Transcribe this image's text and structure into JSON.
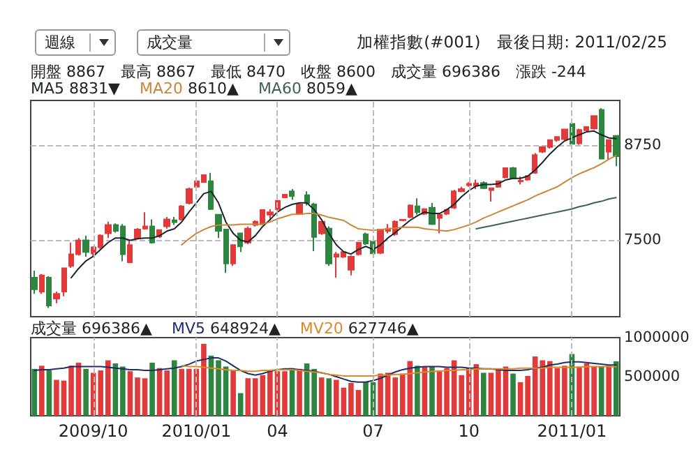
{
  "chart_data": [
    {
      "type": "candlestick",
      "title": "加權指數(#001)　最後日期: 2011/02/25",
      "annotations": [
        "週線",
        "成交量",
        "開盤 8867　最高 8867　最低 8470　收盤 8600　成交量 696386　漲跌 -244"
      ],
      "categories": [
        null,
        null,
        null,
        null,
        null,
        null,
        null,
        null,
        "2009/10",
        null,
        null,
        null,
        null,
        null,
        null,
        null,
        null,
        null,
        null,
        null,
        null,
        null,
        "2010/01",
        null,
        null,
        null,
        null,
        null,
        null,
        null,
        null,
        null,
        null,
        "04",
        null,
        null,
        null,
        null,
        null,
        null,
        null,
        null,
        null,
        null,
        null,
        null,
        "07",
        null,
        null,
        null,
        null,
        null,
        null,
        null,
        null,
        null,
        null,
        null,
        null,
        "10",
        null,
        null,
        null,
        null,
        null,
        null,
        null,
        null,
        null,
        null,
        null,
        null,
        null,
        "2011/01",
        null,
        null,
        null,
        null,
        null,
        null
      ],
      "ohlc": [
        [
          7012,
          7103,
          6798,
          6859
        ],
        [
          6829,
          7060,
          6800,
          7042
        ],
        [
          7012,
          7030,
          6615,
          6646
        ],
        [
          6737,
          6829,
          6676,
          6798
        ],
        [
          6829,
          7134,
          6768,
          7134
        ],
        [
          7164,
          7469,
          7140,
          7317
        ],
        [
          7317,
          7530,
          7300,
          7500
        ],
        [
          7500,
          7561,
          7286,
          7347
        ],
        [
          7329,
          7420,
          7300,
          7408
        ],
        [
          7408,
          7580,
          7390,
          7561
        ],
        [
          7591,
          7744,
          7530,
          7701
        ],
        [
          7701,
          7720,
          7600,
          7622
        ],
        [
          7683,
          7713,
          7225,
          7317
        ],
        [
          7213,
          7500,
          7200,
          7439
        ],
        [
          7530,
          7660,
          7510,
          7640
        ],
        [
          7652,
          7866,
          7640,
          7683
        ],
        [
          7683,
          7774,
          7457,
          7469
        ],
        [
          7549,
          7640,
          7530,
          7634
        ],
        [
          7683,
          7805,
          7652,
          7774
        ],
        [
          7762,
          7805,
          7700,
          7738
        ],
        [
          7774,
          7960,
          7760,
          7945
        ],
        [
          7988,
          8190,
          7970,
          8171
        ],
        [
          8201,
          8280,
          8180,
          8274
        ],
        [
          8262,
          8360,
          8250,
          8354
        ],
        [
          8274,
          8384,
          7896,
          7908
        ],
        [
          7835,
          7840,
          7530,
          7622
        ],
        [
          7640,
          7650,
          7073,
          7195
        ],
        [
          7195,
          7439,
          7164,
          7439
        ],
        [
          7591,
          7600,
          7347,
          7420
        ],
        [
          7469,
          7680,
          7450,
          7652
        ],
        [
          7701,
          7760,
          7680,
          7744
        ],
        [
          7713,
          7896,
          7700,
          7896
        ],
        [
          7835,
          7908,
          7762,
          7866
        ],
        [
          7908,
          8018,
          7890,
          8018
        ],
        [
          8061,
          8100,
          8050,
          8097
        ],
        [
          8140,
          8171,
          8030,
          8079
        ],
        [
          7847,
          7990,
          7840,
          7969
        ],
        [
          8091,
          8140,
          7957,
          7988
        ],
        [
          7969,
          7990,
          7359,
          7542
        ],
        [
          7591,
          7744,
          7570,
          7744
        ],
        [
          7652,
          7680,
          7164,
          7195
        ],
        [
          7286,
          7347,
          7012,
          7317
        ],
        [
          7286,
          7360,
          7270,
          7347
        ],
        [
          7115,
          7300,
          7042,
          7286
        ],
        [
          7317,
          7469,
          7300,
          7469
        ],
        [
          7579,
          7600,
          7440,
          7457
        ],
        [
          7481,
          7500,
          7320,
          7329
        ],
        [
          7335,
          7650,
          7320,
          7640
        ],
        [
          7622,
          7713,
          7591,
          7652
        ],
        [
          7579,
          7760,
          7560,
          7744
        ],
        [
          7762,
          7775,
          7750,
          7770
        ],
        [
          7805,
          7970,
          7790,
          7957
        ],
        [
          7945,
          8049,
          7835,
          7866
        ],
        [
          7847,
          7920,
          7830,
          7908
        ],
        [
          7927,
          7988,
          7701,
          7713
        ],
        [
          7792,
          7840,
          7591,
          7835
        ],
        [
          7847,
          7910,
          7830,
          7896
        ],
        [
          7927,
          8160,
          7910,
          8140
        ],
        [
          8140,
          8200,
          8130,
          8171
        ],
        [
          8220,
          8260,
          8200,
          8240
        ],
        [
          8213,
          8293,
          8171,
          8244
        ],
        [
          8250,
          8270,
          8170,
          8183
        ],
        [
          8158,
          8190,
          8006,
          8183
        ],
        [
          8201,
          8280,
          8190,
          8274
        ],
        [
          8323,
          8450,
          8310,
          8445
        ],
        [
          8445,
          8460,
          8300,
          8311
        ],
        [
          8270,
          8335,
          8231,
          8280
        ],
        [
          8293,
          8341,
          8280,
          8341
        ],
        [
          8384,
          8640,
          8370,
          8616
        ],
        [
          8658,
          8730,
          8640,
          8720
        ],
        [
          8720,
          8811,
          8700,
          8811
        ],
        [
          8811,
          8860,
          8790,
          8854
        ],
        [
          8823,
          8951,
          8810,
          8951
        ],
        [
          9025,
          9040,
          8732,
          8762
        ],
        [
          8768,
          8960,
          8750,
          8945
        ],
        [
          8940,
          8990,
          8920,
          8982
        ],
        [
          8963,
          9128,
          8950,
          9128
        ],
        [
          9207,
          9230,
          8560,
          8567
        ],
        [
          8658,
          8811,
          8555,
          8811
        ],
        [
          8867,
          8867,
          8470,
          8600
        ]
      ],
      "colors": [
        "#2e8540",
        "#e03a3a",
        "#2e8540",
        "#e03a3a",
        "#e03a3a",
        "#e03a3a",
        "#e03a3a",
        "#2e8540",
        "#e03a3a",
        "#e03a3a",
        "#e03a3a",
        "#2e8540",
        "#2e8540",
        "#e03a3a",
        "#e03a3a",
        "#e03a3a",
        "#2e8540",
        "#e03a3a",
        "#e03a3a",
        "#2e8540",
        "#e03a3a",
        "#e03a3a",
        "#e03a3a",
        "#e03a3a",
        "#2e8540",
        "#2e8540",
        "#2e8540",
        "#e03a3a",
        "#2e8540",
        "#e03a3a",
        "#e03a3a",
        "#e03a3a",
        "#e03a3a",
        "#e03a3a",
        "#e03a3a",
        "#2e8540",
        "#e03a3a",
        "#2e8540",
        "#2e8540",
        "#e03a3a",
        "#2e8540",
        "#e03a3a",
        "#e03a3a",
        "#e03a3a",
        "#e03a3a",
        "#2e8540",
        "#2e8540",
        "#e03a3a",
        "#e03a3a",
        "#e03a3a",
        "#e03a3a",
        "#e03a3a",
        "#2e8540",
        "#e03a3a",
        "#2e8540",
        "#e03a3a",
        "#e03a3a",
        "#e03a3a",
        "#e03a3a",
        "#e03a3a",
        "#e03a3a",
        "#2e8540",
        "#e03a3a",
        "#e03a3a",
        "#e03a3a",
        "#2e8540",
        "#e03a3a",
        "#e03a3a",
        "#e03a3a",
        "#e03a3a",
        "#e03a3a",
        "#e03a3a",
        "#e03a3a",
        "#2e8540",
        "#e03a3a",
        "#e03a3a",
        "#e03a3a",
        "#2e8540",
        "#e03a3a",
        "#2e8540"
      ],
      "series": [
        {
          "name": "MA5 8831▼",
          "type": "line",
          "color": "#1c2430",
          "values": [
            null,
            null,
            null,
            null,
            null,
            7010,
            7130,
            7230,
            7290,
            7380,
            7470,
            7530,
            7530,
            7500,
            7520,
            7530,
            7530,
            7560,
            7620,
            7650,
            7740,
            7870,
            7990,
            8110,
            8140,
            7990,
            7740,
            7590,
            7500,
            7480,
            7560,
            7680,
            7770,
            7870,
            7930,
            7970,
            7990,
            7990,
            7900,
            7770,
            7590,
            7440,
            7350,
            7320,
            7380,
            7420,
            7380,
            7440,
            7530,
            7600,
            7680,
            7760,
            7820,
            7870,
            7850,
            7850,
            7900,
            7970,
            8070,
            8150,
            8210,
            8230,
            8230,
            8240,
            8290,
            8310,
            8310,
            8340,
            8420,
            8520,
            8630,
            8720,
            8800,
            8840,
            8880,
            8920,
            8930,
            8880,
            8840,
            8831
          ]
        },
        {
          "name": "MA20 8610▲",
          "type": "line",
          "color": "#c8863a",
          "values": [
            null,
            null,
            null,
            null,
            null,
            null,
            null,
            null,
            null,
            null,
            null,
            null,
            null,
            null,
            null,
            null,
            null,
            null,
            null,
            null,
            7440,
            7520,
            7590,
            7640,
            7680,
            7700,
            7700,
            7700,
            7710,
            7710,
            7710,
            7710,
            7740,
            7780,
            7810,
            7840,
            7840,
            7850,
            7850,
            7830,
            7800,
            7780,
            7760,
            7700,
            7650,
            7640,
            7630,
            7640,
            7650,
            7660,
            7670,
            7670,
            7670,
            7650,
            7640,
            7630,
            7620,
            7640,
            7670,
            7700,
            7740,
            7790,
            7830,
            7870,
            7910,
            7950,
            7990,
            8030,
            8080,
            8120,
            8160,
            8200,
            8260,
            8320,
            8370,
            8410,
            8450,
            8500,
            8560,
            8610
          ]
        },
        {
          "name": "MA60 8059▲",
          "type": "line",
          "color": "#3f6150",
          "values": [
            null,
            null,
            null,
            null,
            null,
            null,
            null,
            null,
            null,
            null,
            null,
            null,
            null,
            null,
            null,
            null,
            null,
            null,
            null,
            null,
            null,
            null,
            null,
            null,
            null,
            null,
            null,
            null,
            null,
            null,
            null,
            null,
            null,
            null,
            null,
            null,
            null,
            null,
            null,
            null,
            null,
            null,
            null,
            null,
            null,
            null,
            null,
            null,
            null,
            null,
            null,
            null,
            null,
            null,
            null,
            null,
            null,
            null,
            null,
            null,
            7650,
            7670,
            7690,
            7710,
            7730,
            7750,
            7770,
            7790,
            7810,
            7830,
            7850,
            7870,
            7890,
            7910,
            7940,
            7960,
            7990,
            8010,
            8040,
            8059
          ]
        }
      ],
      "ylim": [
        6500,
        9330
      ],
      "yticks": [
        7500,
        8750
      ],
      "grid": true,
      "legend": "top left",
      "tick_labels": "y"
    },
    {
      "type": "bar",
      "categories": [
        null,
        null,
        null,
        null,
        null,
        null,
        null,
        null,
        "2009/10",
        null,
        null,
        null,
        null,
        null,
        null,
        null,
        null,
        null,
        null,
        null,
        null,
        null,
        "2010/01",
        null,
        null,
        null,
        null,
        null,
        null,
        null,
        null,
        null,
        null,
        "04",
        null,
        null,
        null,
        null,
        null,
        null,
        null,
        null,
        null,
        null,
        null,
        null,
        "07",
        null,
        null,
        null,
        null,
        null,
        null,
        null,
        null,
        null,
        null,
        null,
        null,
        "10",
        null,
        null,
        null,
        null,
        null,
        null,
        null,
        null,
        null,
        null,
        null,
        null,
        null,
        "2011/01",
        null,
        null,
        null,
        null,
        null,
        null
      ],
      "series": [
        {
          "name": "成交量 696386▲",
          "type": "bar",
          "colors": [
            "#2e8540",
            "#e03a3a",
            "#2e8540",
            "#e03a3a",
            "#e03a3a",
            "#e03a3a",
            "#e03a3a",
            "#2e8540",
            "#e03a3a",
            "#e03a3a",
            "#e03a3a",
            "#2e8540",
            "#2e8540",
            "#e03a3a",
            "#e03a3a",
            "#e03a3a",
            "#2e8540",
            "#e03a3a",
            "#e03a3a",
            "#2e8540",
            "#e03a3a",
            "#e03a3a",
            "#e03a3a",
            "#e03a3a",
            "#2e8540",
            "#2e8540",
            "#2e8540",
            "#e03a3a",
            "#2e8540",
            "#e03a3a",
            "#e03a3a",
            "#e03a3a",
            "#e03a3a",
            "#e03a3a",
            "#e03a3a",
            "#2e8540",
            "#e03a3a",
            "#2e8540",
            "#2e8540",
            "#e03a3a",
            "#2e8540",
            "#e03a3a",
            "#e03a3a",
            "#e03a3a",
            "#e03a3a",
            "#2e8540",
            "#2e8540",
            "#e03a3a",
            "#e03a3a",
            "#e03a3a",
            "#e03a3a",
            "#e03a3a",
            "#2e8540",
            "#e03a3a",
            "#2e8540",
            "#e03a3a",
            "#e03a3a",
            "#e03a3a",
            "#e03a3a",
            "#e03a3a",
            "#e03a3a",
            "#2e8540",
            "#e03a3a",
            "#e03a3a",
            "#e03a3a",
            "#2e8540",
            "#e03a3a",
            "#e03a3a",
            "#e03a3a",
            "#e03a3a",
            "#e03a3a",
            "#e03a3a",
            "#e03a3a",
            "#2e8540",
            "#e03a3a",
            "#e03a3a",
            "#e03a3a",
            "#2e8540",
            "#e03a3a",
            "#2e8540"
          ],
          "values": [
            600000,
            640000,
            580000,
            460000,
            450000,
            640000,
            680000,
            600000,
            550000,
            580000,
            710000,
            670000,
            630000,
            570000,
            490000,
            480000,
            680000,
            610000,
            580000,
            710000,
            600000,
            600000,
            600000,
            920000,
            770000,
            710000,
            630000,
            580000,
            290000,
            480000,
            480000,
            520000,
            570000,
            570000,
            570000,
            610000,
            600000,
            670000,
            600000,
            490000,
            480000,
            460000,
            360000,
            420000,
            330000,
            430000,
            430000,
            540000,
            550000,
            490000,
            540000,
            700000,
            640000,
            630000,
            630000,
            580000,
            610000,
            710000,
            520000,
            610000,
            660000,
            550000,
            550000,
            600000,
            630000,
            540000,
            430000,
            510000,
            760000,
            710000,
            700000,
            610000,
            640000,
            790000,
            630000,
            670000,
            630000,
            630000,
            640000,
            696386
          ]
        },
        {
          "name": "MV5 648924▲",
          "type": "line",
          "color": "#1f2d6b",
          "values": [
            580000,
            590000,
            590000,
            600000,
            610000,
            630000,
            630000,
            630000,
            630000,
            630000,
            620000,
            610000,
            600000,
            590000,
            590000,
            580000,
            580000,
            590000,
            600000,
            610000,
            630000,
            660000,
            700000,
            720000,
            740000,
            740000,
            700000,
            640000,
            580000,
            540000,
            520000,
            540000,
            570000,
            590000,
            600000,
            600000,
            590000,
            580000,
            570000,
            550000,
            530000,
            500000,
            470000,
            440000,
            430000,
            430000,
            450000,
            480000,
            520000,
            560000,
            590000,
            610000,
            620000,
            630000,
            630000,
            630000,
            620000,
            620000,
            620000,
            610000,
            610000,
            600000,
            600000,
            590000,
            580000,
            580000,
            580000,
            590000,
            610000,
            620000,
            650000,
            660000,
            680000,
            690000,
            690000,
            680000,
            670000,
            660000,
            650000,
            648924
          ]
        },
        {
          "name": "MV20 627746▲",
          "type": "line",
          "color": "#d98a2a",
          "values": [
            null,
            null,
            null,
            null,
            null,
            null,
            null,
            null,
            null,
            null,
            null,
            null,
            null,
            null,
            null,
            null,
            null,
            null,
            null,
            null,
            640000,
            630000,
            630000,
            620000,
            610000,
            600000,
            590000,
            580000,
            580000,
            570000,
            570000,
            580000,
            580000,
            590000,
            590000,
            590000,
            580000,
            570000,
            560000,
            550000,
            530000,
            520000,
            510000,
            510000,
            510000,
            510000,
            510000,
            520000,
            520000,
            530000,
            530000,
            540000,
            550000,
            560000,
            570000,
            570000,
            580000,
            580000,
            590000,
            590000,
            600000,
            600000,
            600000,
            600000,
            600000,
            600000,
            610000,
            610000,
            610000,
            610000,
            620000,
            620000,
            620000,
            620000,
            620000,
            630000,
            630000,
            630000,
            630000,
            627746
          ]
        }
      ],
      "ylim": [
        0,
        1000000
      ],
      "yticks": [
        500000,
        1000000
      ],
      "grid": "x",
      "legend": "top left"
    }
  ]
}
